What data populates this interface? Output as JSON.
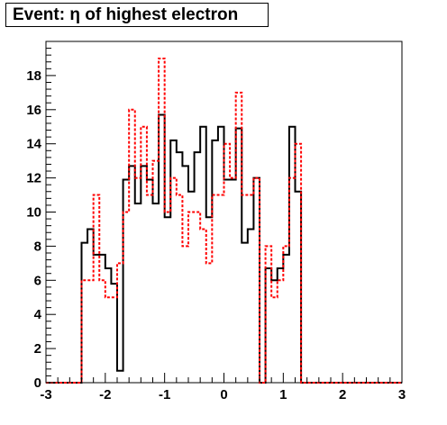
{
  "chart_data": {
    "type": "histogram",
    "title": "Event: η of highest electron",
    "xlabel": "",
    "ylabel": "",
    "xlim": [
      -3,
      3
    ],
    "ylim": [
      0,
      20
    ],
    "x_ticks": [
      -3,
      -2,
      -1,
      0,
      1,
      2,
      3
    ],
    "y_ticks": [
      0,
      2,
      4,
      6,
      8,
      10,
      12,
      14,
      16,
      18
    ],
    "bin_edges": [
      -3.0,
      -2.9,
      -2.8,
      -2.7,
      -2.6,
      -2.5,
      -2.4,
      -2.3,
      -2.2,
      -2.1,
      -2.0,
      -1.9,
      -1.8,
      -1.7,
      -1.6,
      -1.5,
      -1.4,
      -1.3,
      -1.2,
      -1.1,
      -1.0,
      -0.9,
      -0.8,
      -0.7,
      -0.6,
      -0.5,
      -0.4,
      -0.3,
      -0.2,
      -0.1,
      0.0,
      0.1,
      0.2,
      0.3,
      0.4,
      0.5,
      0.6,
      0.7,
      0.8,
      0.9,
      1.0,
      1.1,
      1.2,
      1.3,
      1.4,
      1.5,
      1.6,
      1.7,
      1.8,
      1.9,
      2.0,
      2.1,
      2.2,
      2.3,
      2.4,
      2.5,
      2.6,
      2.7,
      2.8,
      2.9,
      3.0
    ],
    "grid": false,
    "series": [
      {
        "style": "solid",
        "color": "#000000",
        "values": [
          0,
          0,
          0,
          0,
          0,
          0,
          8.2,
          9.0,
          7.5,
          7.5,
          6.7,
          5.8,
          0.7,
          11.9,
          12.7,
          10.5,
          12.7,
          11.9,
          10.5,
          15.7,
          9.7,
          14.2,
          13.5,
          12.7,
          11.2,
          13.5,
          15.0,
          9.7,
          14.2,
          15.0,
          11.9,
          11.9,
          14.9,
          8.2,
          9.0,
          12.0,
          0.0,
          6.7,
          6.0,
          6.7,
          7.5,
          15.0,
          11.2,
          0,
          0,
          0,
          0,
          0,
          0,
          0,
          0,
          0,
          0,
          0,
          0,
          0,
          0,
          0,
          0,
          0
        ]
      },
      {
        "style": "dashed",
        "color": "#ff0000",
        "values": [
          0,
          0,
          0,
          0,
          0,
          0,
          6.0,
          6.0,
          11.0,
          6.0,
          5.0,
          5.0,
          7.0,
          10.0,
          16.0,
          12.0,
          15.0,
          11.0,
          13.0,
          19.0,
          10.0,
          12.0,
          11.0,
          8.0,
          10.0,
          10.0,
          9.0,
          7.0,
          11.0,
          11.0,
          14.0,
          12.0,
          17.0,
          11.0,
          11.0,
          12.0,
          0.0,
          8.0,
          5.0,
          6.0,
          8.0,
          12.0,
          14.0,
          0,
          0,
          0,
          0,
          0,
          0,
          0,
          0,
          0,
          0,
          0,
          0,
          0,
          0,
          0,
          0,
          0
        ]
      }
    ]
  }
}
